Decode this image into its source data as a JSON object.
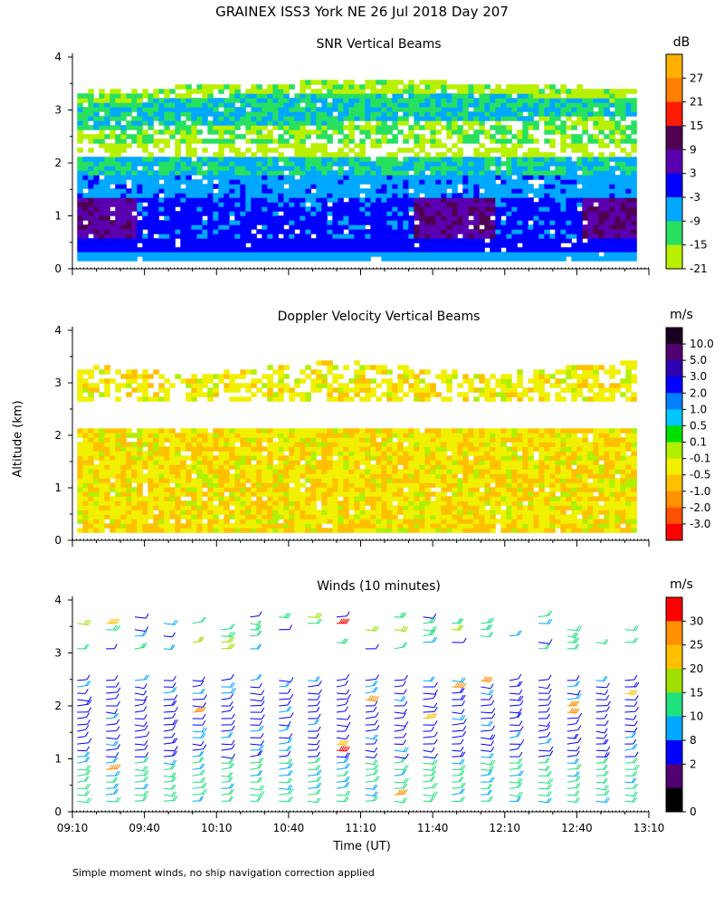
{
  "figure": {
    "title": "GRAINEX ISS3 York NE  26 Jul 2018 Day 207",
    "ylabel": "Altitude (km)",
    "xlabel": "Time (UT)",
    "footnote": "Simple moment winds, no ship navigation correction applied"
  },
  "chart_data": [
    {
      "type": "heatmap",
      "title": "SNR Vertical Beams",
      "unit": "dB",
      "xlabel": "Time (UT)",
      "ylabel": "Altitude (km)",
      "x_ticks": [
        "09:10",
        "09:40",
        "10:10",
        "10:40",
        "11:10",
        "11:40",
        "12:10",
        "12:40",
        "13:10"
      ],
      "xlim_minutes_utc": [
        550,
        790
      ],
      "y_ticks": [
        0,
        1,
        2,
        3,
        4
      ],
      "ylim": [
        0,
        4
      ],
      "colorbar_labels": [
        "27",
        "21",
        "15",
        "9",
        "3",
        "-3",
        "-9",
        "-15",
        "-21"
      ],
      "colorbar_colors": [
        "#ffb000",
        "#ff7f00",
        "#ff1a00",
        "#500050",
        "#5a00b0",
        "#0000ff",
        "#00a8ff",
        "#27e060",
        "#b8f000"
      ],
      "layers": [
        {
          "altitude_km": [
            0.2,
            0.6
          ],
          "value_db": -6
        },
        {
          "altitude_km": [
            0.6,
            1.3
          ],
          "value_db": -3
        },
        {
          "altitude_km": [
            1.3,
            2.0
          ],
          "value_db": -12
        },
        {
          "altitude_km": [
            2.3,
            2.6
          ],
          "value_db": -18
        },
        {
          "altitude_km": [
            2.6,
            3.1
          ],
          "value_db": -12
        },
        {
          "altitude_km": [
            3.1,
            3.5
          ],
          "value_db": -18
        }
      ]
    },
    {
      "type": "heatmap",
      "title": "Doppler Velocity Vertical Beams",
      "unit": "m/s",
      "xlabel": "Time (UT)",
      "ylabel": "Altitude (km)",
      "x_ticks": [
        "09:10",
        "09:40",
        "10:10",
        "10:40",
        "11:10",
        "11:40",
        "12:10",
        "12:40",
        "13:10"
      ],
      "xlim_minutes_utc": [
        550,
        790
      ],
      "y_ticks": [
        0,
        1,
        2,
        3,
        4
      ],
      "ylim": [
        0,
        4
      ],
      "colorbar_labels": [
        "10.0",
        "5.0",
        "3.0",
        "2.0",
        "1.0",
        "0.5",
        "0.1",
        "-0.1",
        "-0.5",
        "-1.0",
        "-2.0",
        "-3.0"
      ],
      "colorbar_colors": [
        "#1a0020",
        "#500070",
        "#2a00b0",
        "#0000ff",
        "#0080ff",
        "#00c8ff",
        "#00e000",
        "#b0f000",
        "#f0f000",
        "#ffc000",
        "#ff9000",
        "#ff5000",
        "#ff0000"
      ],
      "layers": [
        {
          "altitude_km": [
            0.1,
            2.1
          ],
          "value_ms": -0.5
        },
        {
          "altitude_km": [
            2.6,
            3.5
          ],
          "value_ms": -0.5
        }
      ]
    },
    {
      "type": "wind_barbs",
      "title": "Winds (10 minutes)",
      "unit": "m/s",
      "xlabel": "Time (UT)",
      "ylabel": "Altitude (km)",
      "x_ticks": [
        "09:10",
        "09:40",
        "10:10",
        "10:40",
        "11:10",
        "11:40",
        "12:10",
        "12:40",
        "13:10"
      ],
      "xlim_minutes_utc": [
        550,
        790
      ],
      "y_ticks": [
        0,
        1,
        2,
        3,
        4
      ],
      "ylim": [
        0,
        4
      ],
      "colorbar_labels": [
        "30",
        "25",
        "20",
        "15",
        "10",
        "8",
        "2",
        "0"
      ],
      "colorbar_colors": [
        "#ff0000",
        "#ff9000",
        "#ffc000",
        "#a0e000",
        "#20e080",
        "#00a8ff",
        "#0000ff",
        "#500070",
        "#000000"
      ],
      "profiles_minutes_utc": [
        552,
        564,
        576,
        588,
        600,
        612,
        624,
        636,
        648,
        660,
        672,
        684,
        696,
        708,
        720,
        732,
        744,
        756,
        768,
        780
      ],
      "typical_speed_ms": {
        "low_0_1km": 10,
        "mid_1_2.5km": 6,
        "upper_3_4km": 8
      }
    }
  ]
}
